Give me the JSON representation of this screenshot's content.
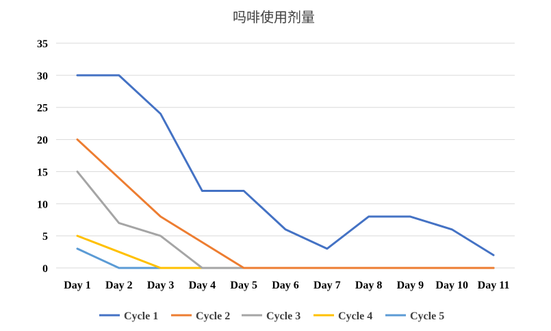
{
  "chart_data": {
    "type": "line",
    "title": "吗啡使用剂量",
    "xlabel": "",
    "ylabel": "",
    "categories": [
      "Day 1",
      "Day 2",
      "Day 3",
      "Day 4",
      "Day 5",
      "Day 6",
      "Day 7",
      "Day 8",
      "Day 9",
      "Day 10",
      "Day 11"
    ],
    "ylim": [
      0,
      35
    ],
    "yticks": [
      0,
      5,
      10,
      15,
      20,
      25,
      30,
      35
    ],
    "grid": true,
    "legend": "bottom",
    "series": [
      {
        "name": "Cycle 1",
        "color": "#4472c4",
        "values": [
          30,
          30,
          24,
          12,
          12,
          6,
          3,
          8,
          8,
          6,
          2
        ]
      },
      {
        "name": "Cycle 2",
        "color": "#ed7d31",
        "values": [
          20,
          14,
          8,
          4,
          0,
          0,
          0,
          0,
          0,
          0,
          0
        ]
      },
      {
        "name": "Cycle 3",
        "color": "#a5a5a5",
        "values": [
          15,
          7,
          5,
          0,
          0,
          0,
          0,
          0,
          0,
          0,
          0
        ]
      },
      {
        "name": "Cycle 4",
        "color": "#ffc000",
        "values": [
          5,
          2.5,
          0,
          0,
          0,
          0,
          0,
          0,
          0,
          0,
          0
        ]
      },
      {
        "name": "Cycle 5",
        "color": "#5b9bd5",
        "values": [
          3,
          0,
          0,
          0,
          0,
          0,
          0,
          0,
          0,
          0,
          0
        ]
      }
    ]
  }
}
